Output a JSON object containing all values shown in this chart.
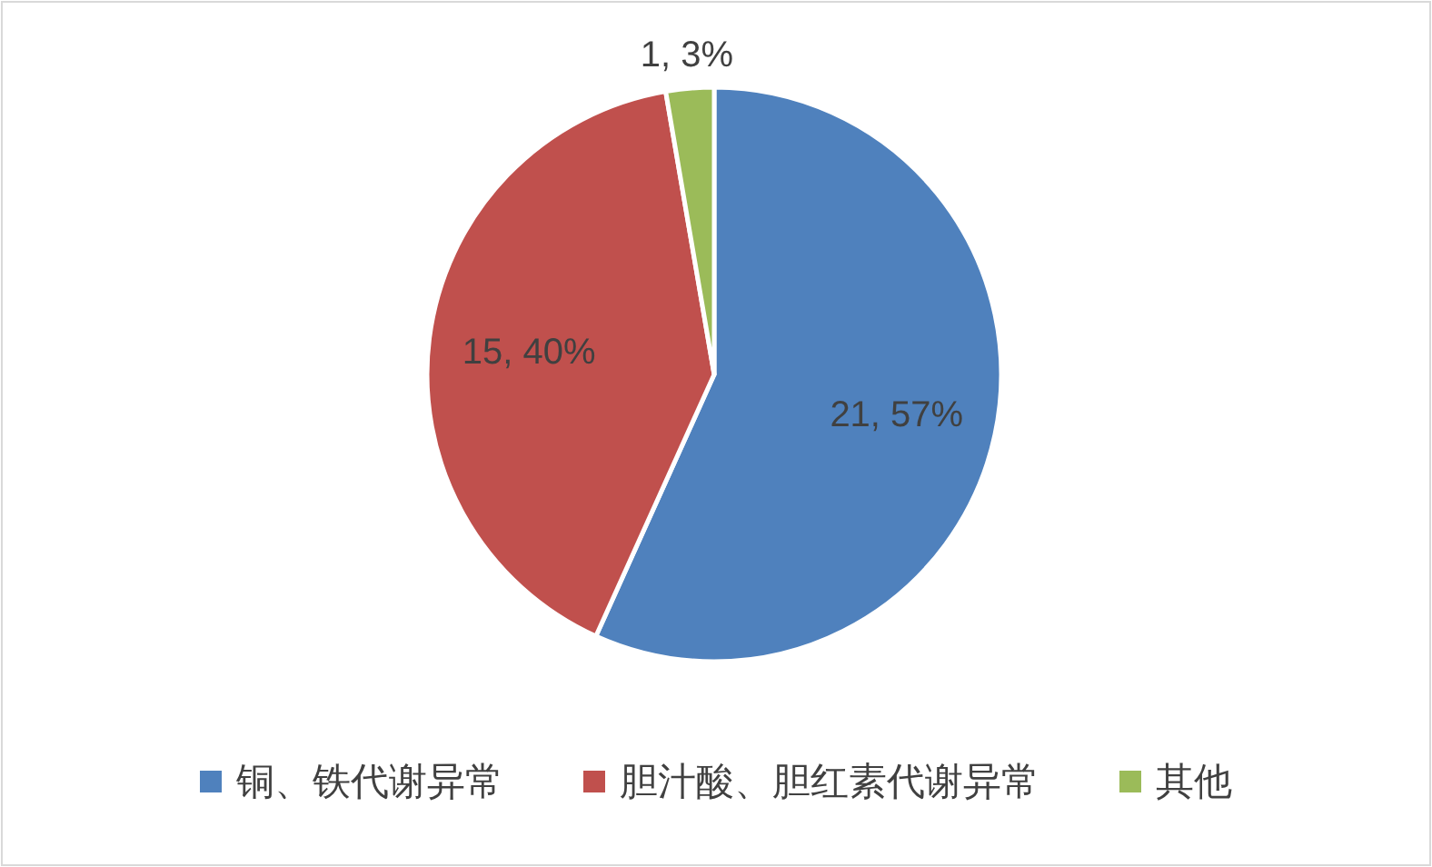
{
  "chart_data": {
    "type": "pie",
    "categories": [
      "铜、铁代谢异常",
      "胆汁酸、胆红素代谢异常",
      "其他"
    ],
    "values": [
      21,
      15,
      1
    ],
    "colors": [
      "#4f81bd",
      "#c0504d",
      "#9bbb59"
    ],
    "value_labels": [
      "21, 57%",
      "15, 40%",
      "1, 3%"
    ],
    "legend": "bottom"
  }
}
